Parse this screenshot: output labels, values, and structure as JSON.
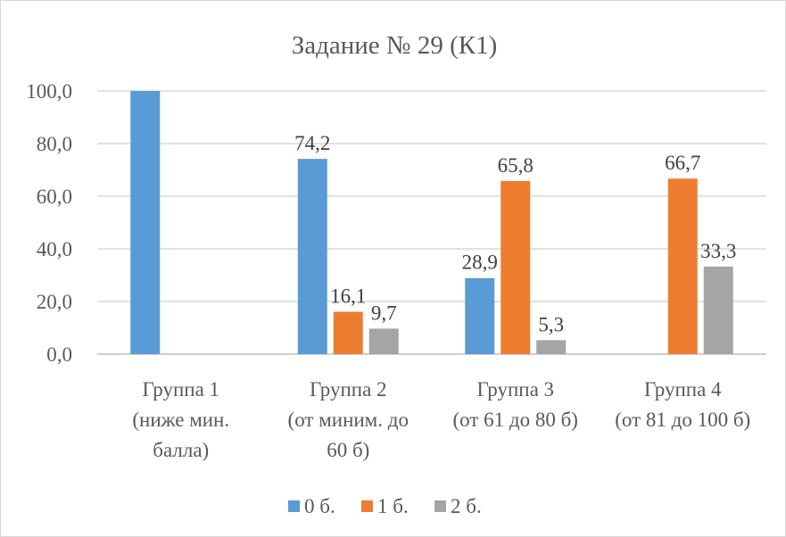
{
  "chart_data": {
    "type": "bar",
    "title": "Задание № 29 (К1)",
    "xlabel": "",
    "ylabel": "",
    "ylim": [
      0,
      100
    ],
    "yticks": [
      "0,0",
      "20,0",
      "40,0",
      "60,0",
      "80,0",
      "100,0"
    ],
    "ytick_values": [
      0,
      20,
      40,
      60,
      80,
      100
    ],
    "categories": [
      [
        "Группа 1",
        "(ниже мин.",
        "балла)"
      ],
      [
        "Группа 2",
        "(от миним. до",
        "60 б)"
      ],
      [
        "Группа 3",
        "(от 61 до 80 б)"
      ],
      [
        "Группа 4",
        "(от 81 до 100 б)"
      ]
    ],
    "series": [
      {
        "name": "0 б.",
        "color": "#5b9bd5",
        "values": [
          100.0,
          74.2,
          28.9,
          null
        ],
        "labels": [
          null,
          "74,2",
          "28,9",
          null
        ]
      },
      {
        "name": "1 б.",
        "color": "#ed7d31",
        "values": [
          null,
          16.1,
          65.8,
          66.7
        ],
        "labels": [
          null,
          "16,1",
          "65,8",
          "66,7"
        ]
      },
      {
        "name": "2 б.",
        "color": "#a5a5a5",
        "values": [
          null,
          9.7,
          5.3,
          33.3
        ],
        "labels": [
          null,
          "9,7",
          "5,3",
          "33,3"
        ]
      }
    ],
    "grid": true,
    "legend_position": "bottom"
  }
}
